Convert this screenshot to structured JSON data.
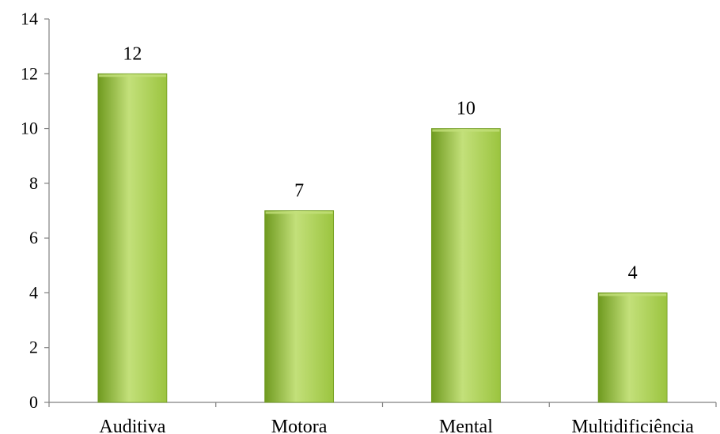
{
  "chart_data": {
    "type": "bar",
    "categories": [
      "Auditiva",
      "Motora",
      "Mental",
      "Multidificiência"
    ],
    "values": [
      12,
      7,
      10,
      4
    ],
    "title": "",
    "xlabel": "",
    "ylabel": "",
    "ylim": [
      0,
      14
    ],
    "yticks": [
      0,
      2,
      4,
      6,
      8,
      10,
      12,
      14
    ],
    "grid": false,
    "legend": "none",
    "data_labels": true,
    "bar_color": "#9bc43f",
    "bar_color_light": "#c3e07a",
    "bar_color_dark": "#6f9a1f"
  }
}
